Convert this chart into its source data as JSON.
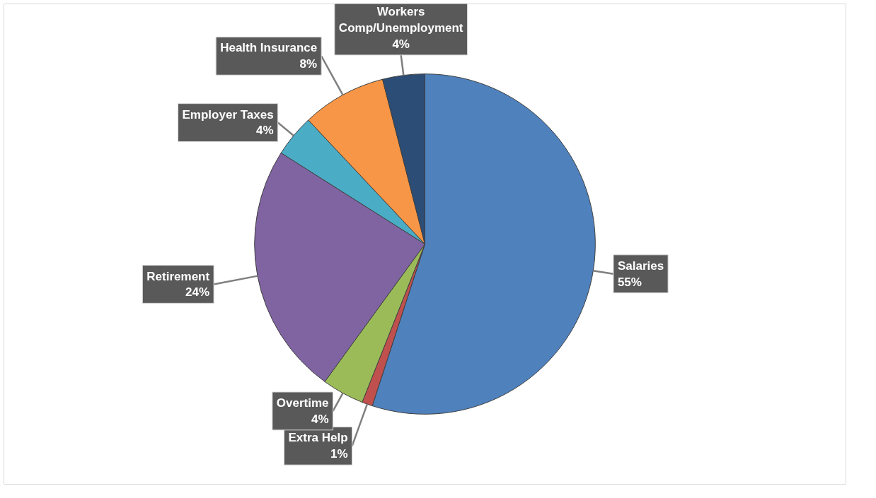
{
  "chart_data": {
    "type": "pie",
    "categories": [
      "Salaries",
      "Extra Help",
      "Overtime",
      "Retirement",
      "Employer Taxes",
      "Health Insurance",
      "Workers Comp/Unemployment"
    ],
    "values": [
      55,
      1,
      4,
      24,
      4,
      8,
      4
    ],
    "colors": [
      "#4f81bd",
      "#c0504d",
      "#9bbb59",
      "#8064a2",
      "#4bacc6",
      "#f79646",
      "#2c4d75"
    ],
    "value_labels": [
      "55%",
      "1%",
      "4%",
      "24%",
      "4%",
      "8%",
      "4%"
    ]
  }
}
